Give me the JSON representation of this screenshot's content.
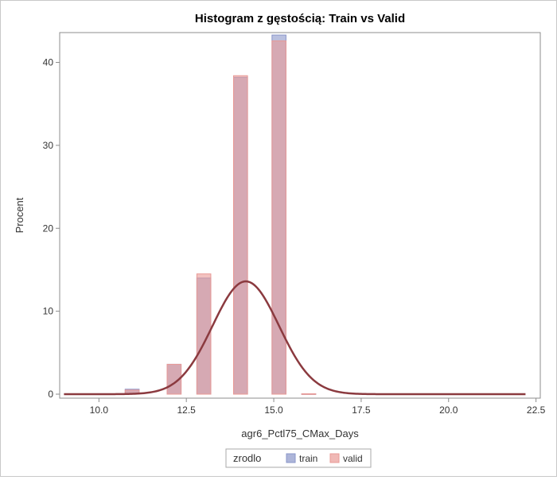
{
  "chart_data": {
    "type": "bar",
    "title": "Histogram z gęstością: Train vs Valid",
    "xlabel": "agr6_Pctl75_CMax_Days",
    "ylabel": "Procent",
    "xlim": [
      8.9,
      22.6
    ],
    "ylim": [
      0,
      43.5
    ],
    "xticks": [
      10.0,
      12.5,
      15.0,
      17.5,
      20.0,
      22.5
    ],
    "xtick_labels": [
      "10.0",
      "12.5",
      "15.0",
      "17.5",
      "20.0",
      "22.5"
    ],
    "yticks": [
      0,
      10,
      20,
      30,
      40
    ],
    "bin_width": 0.4,
    "series": [
      {
        "name": "train",
        "color": "#8a96c9",
        "bins": [
          {
            "x": 10.15,
            "y": 0.05
          },
          {
            "x": 10.95,
            "y": 0.6
          },
          {
            "x": 12.15,
            "y": 3.6
          },
          {
            "x": 13.0,
            "y": 14.0
          },
          {
            "x": 14.05,
            "y": 38.2
          },
          {
            "x": 15.15,
            "y": 43.3
          },
          {
            "x": 16.0,
            "y": 0.05
          }
        ]
      },
      {
        "name": "valid",
        "color": "#e99a96",
        "bins": [
          {
            "x": 10.15,
            "y": 0.05
          },
          {
            "x": 10.95,
            "y": 0.5
          },
          {
            "x": 12.15,
            "y": 3.6
          },
          {
            "x": 13.0,
            "y": 14.5
          },
          {
            "x": 14.05,
            "y": 38.4
          },
          {
            "x": 15.15,
            "y": 42.6
          },
          {
            "x": 16.0,
            "y": 0.05
          }
        ]
      }
    ],
    "density": {
      "type": "normal",
      "mean": 14.2,
      "sd": 0.95,
      "peak": 13.6,
      "color": "#8b3a3f"
    },
    "legend": {
      "title": "zrodlo",
      "position": "bottom",
      "items": [
        {
          "label": "train",
          "color": "#8a96c9"
        },
        {
          "label": "valid",
          "color": "#e99a96"
        }
      ]
    },
    "grid": false
  }
}
